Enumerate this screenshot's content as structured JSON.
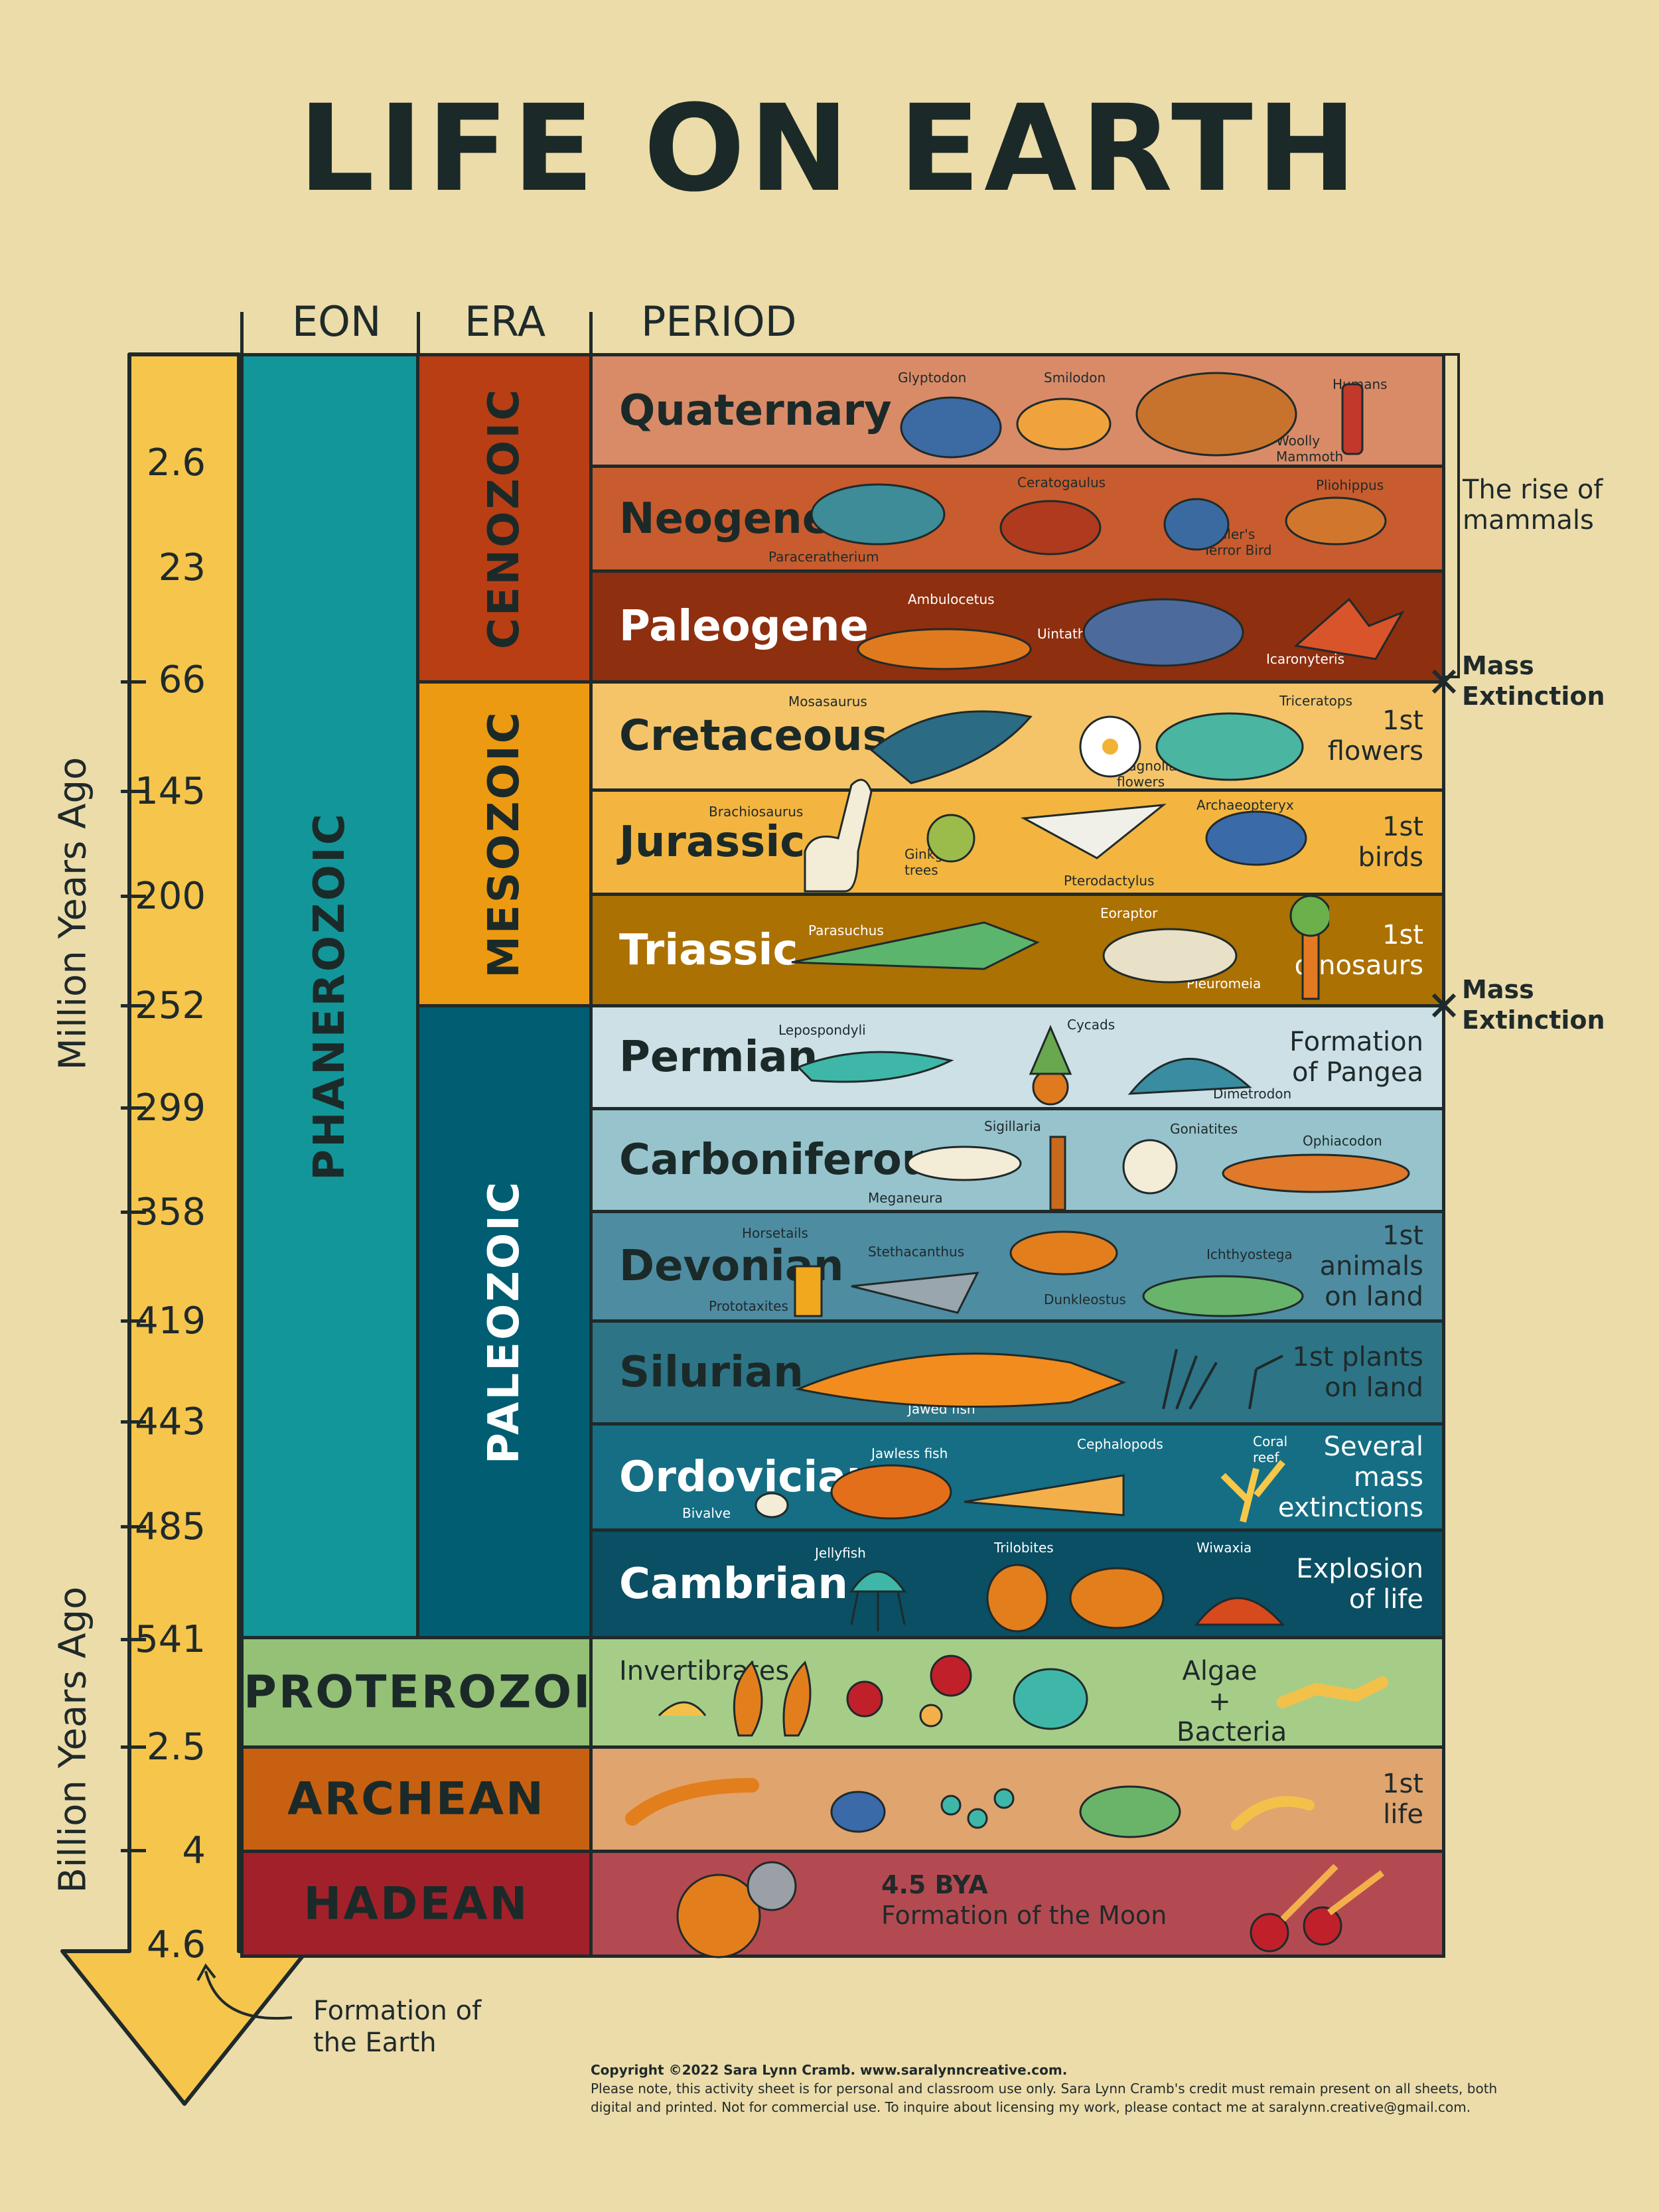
{
  "title": "LIFE ON EARTH",
  "column_headers": {
    "eon": "EON",
    "era": "ERA",
    "period": "PERIOD"
  },
  "axis": {
    "million_label": "Million Years Ago",
    "billion_label": "Billion Years Ago",
    "million_ticks": [
      "2.6",
      "23",
      "66",
      "145",
      "200",
      "252",
      "299",
      "358",
      "419",
      "443",
      "485",
      "541"
    ],
    "billion_ticks": [
      "2.5",
      "4",
      "4.6"
    ],
    "earth_note": "Formation of the Earth"
  },
  "eons": {
    "phanerozoic": "PHANEROZOIC",
    "proterozoic": "PROTEROZOIC",
    "archean": "ARCHEAN",
    "hadean": "HADEAN"
  },
  "eras": {
    "cenozoic": "CENOZOIC",
    "mesozoic": "MESOZOIC",
    "paleozoic": "PALEOZOIC"
  },
  "periods": [
    {
      "name": "Quaternary",
      "note": "",
      "captions": [
        "Glyptodon",
        "Smilodon",
        "Woolly Mammoth",
        "Humans"
      ]
    },
    {
      "name": "Neogene",
      "note": "",
      "captions": [
        "Paraceratherium",
        "Ceratogaulus",
        "Waller's Terror Bird",
        "Pliohippus"
      ]
    },
    {
      "name": "Paleogene",
      "note": "",
      "captions": [
        "Ambulocetus",
        "Uintatherium",
        "Icaronyteris"
      ]
    },
    {
      "name": "Cretaceous",
      "note": "1st flowers",
      "captions": [
        "Mosasaurus",
        "Magnolia flowers",
        "Triceratops"
      ]
    },
    {
      "name": "Jurassic",
      "note": "1st birds",
      "captions": [
        "Brachiosaurus",
        "Ginkgo trees",
        "Pterodactylus",
        "Archaeopteryx"
      ]
    },
    {
      "name": "Triassic",
      "note": "1st dinosaurs",
      "captions": [
        "Parasuchus",
        "Eoraptor",
        "Pleuromeia"
      ]
    },
    {
      "name": "Permian",
      "note": "Formation of Pangea",
      "captions": [
        "Lepospondyli",
        "Cycads",
        "Dimetrodon"
      ]
    },
    {
      "name": "Carboniferous",
      "note": "",
      "captions": [
        "Meganeura",
        "Sigillaria",
        "Goniatites",
        "Ophiacodon"
      ]
    },
    {
      "name": "Devonian",
      "note": "1st animals on land",
      "captions": [
        "Horsetails",
        "Prototaxites",
        "Stethacanthus",
        "Dunkleostus",
        "Ichthyostega"
      ]
    },
    {
      "name": "Silurian",
      "note": "1st plants on land",
      "captions": [
        "Jawed fish"
      ]
    },
    {
      "name": "Ordovician",
      "note": "Several mass extinctions",
      "captions": [
        "Bivalve",
        "Jawless fish",
        "Cephalopods",
        "Coral reef"
      ]
    },
    {
      "name": "Cambrian",
      "note": "Explosion of life",
      "captions": [
        "Jellyfish",
        "Trilobites",
        "Wiwaxia"
      ]
    }
  ],
  "precambrian": {
    "proterozoic_left": "Invertibrates",
    "proterozoic_right": "Algae + Bacteria",
    "archean_note": "1st life",
    "hadean_bya": "4.5 BYA",
    "hadean_event": "Formation of the Moon"
  },
  "side_notes": {
    "rise_of_mammals": "The rise of mammals",
    "mass_extinction_1": "Mass Extinction",
    "mass_extinction_2": "Mass Extinction"
  },
  "footer": {
    "line1": "Copyright ©2022 Sara Lynn Cramb. www.saralynncreative.com.",
    "line2": "Please note, this activity sheet is for personal and classroom use only. Sara Lynn Cramb's credit must remain present on all sheets, both digital and printed. Not for commercial use. To inquire about licensing my work, please contact me at saralynn.creative@gmail.com."
  },
  "colors": {
    "background": "#ecdcaa",
    "arrow": "#f6c54c",
    "phanerozoic": "#12969a",
    "cenozoic": "#b93e14",
    "mesozoic": "#ec9a12",
    "paleozoic": "#015e72",
    "proterozoic": "#94c176",
    "archean": "#c76111",
    "hadean": "#a2202a"
  }
}
